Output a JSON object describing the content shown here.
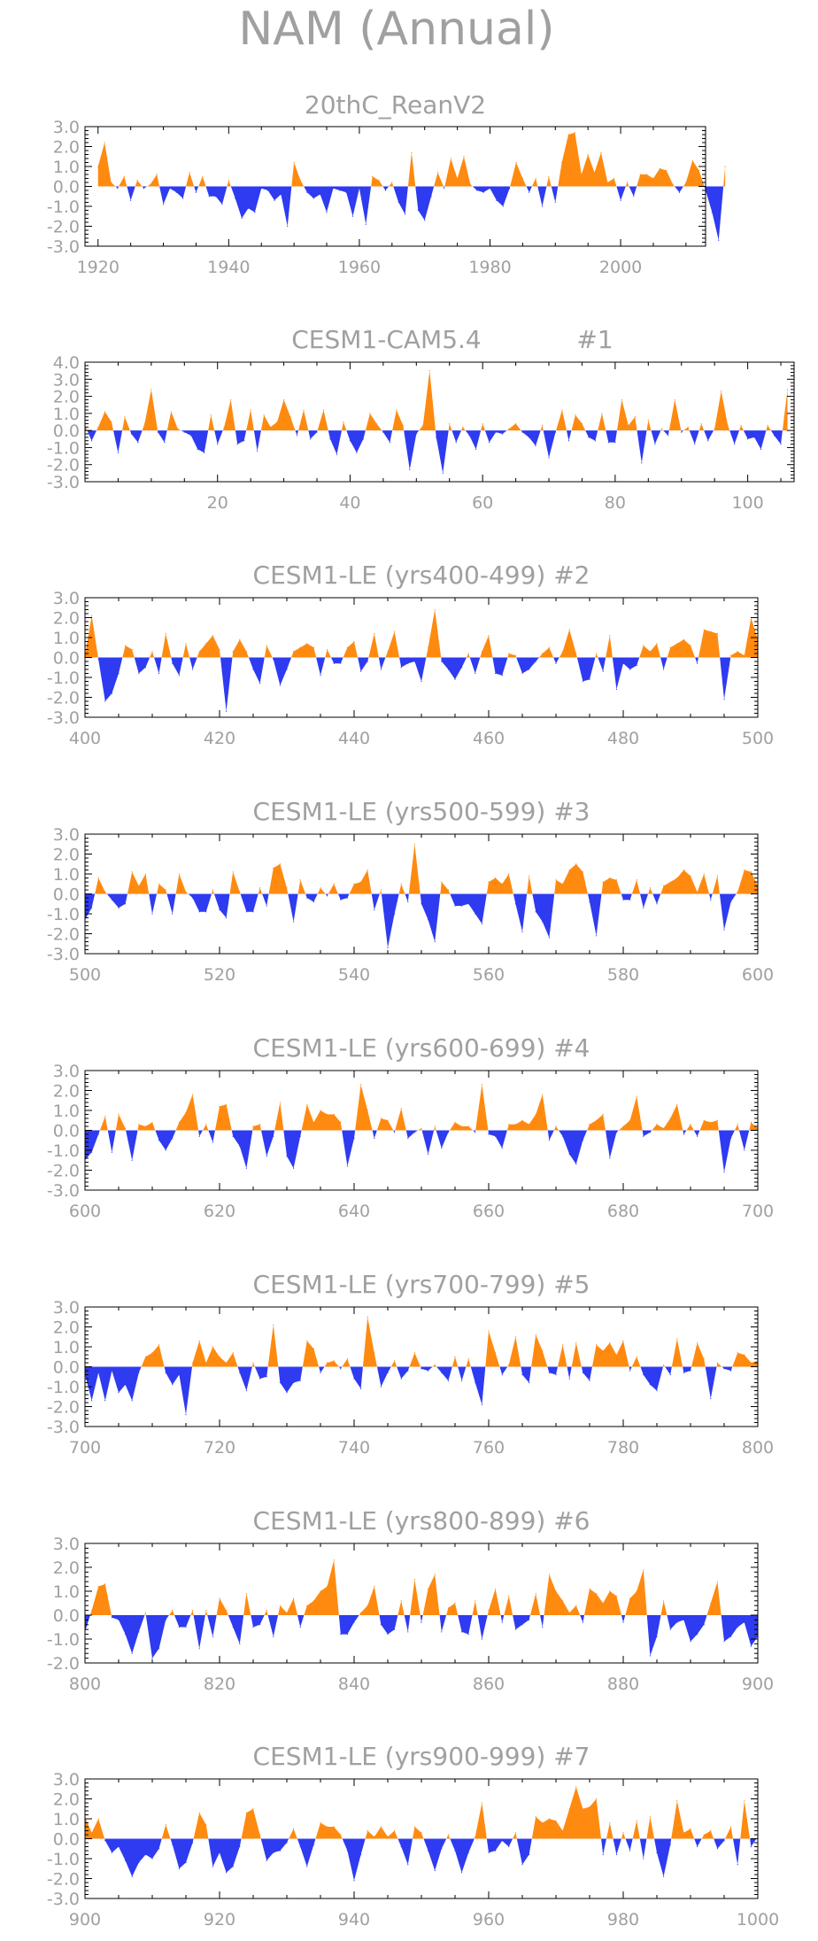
{
  "title": "NAM (Annual)",
  "colors": {
    "positive": "#ff8a10",
    "negative": "#2e3bf0",
    "text": "#a0a0a0",
    "axis": "#000000"
  },
  "chart_data": [
    {
      "type": "area",
      "title": "20thC_ReanV2",
      "xlim": [
        1918,
        2013
      ],
      "ylim": [
        -3,
        3
      ],
      "xticks": [
        1920,
        1940,
        1960,
        1980,
        2000
      ],
      "yticks": [
        -3,
        -2,
        -1,
        0,
        1,
        2,
        3
      ],
      "ytick_labels": [
        "-3.0",
        "-2.0",
        "-1.0",
        "0.0",
        "1.0",
        "2.0",
        "3.0"
      ],
      "x_start": 1920,
      "values": [
        1.0,
        2.2,
        0.2,
        -0.1,
        0.5,
        -0.7,
        0.3,
        -0.1,
        0.1,
        0.6,
        -0.9,
        -0.1,
        -0.3,
        -0.6,
        0.7,
        -0.3,
        0.5,
        -0.5,
        -0.5,
        -0.9,
        0.3,
        -0.6,
        -1.6,
        -1.1,
        -1.3,
        -0.1,
        -0.2,
        -0.7,
        -0.4,
        -2.0,
        1.2,
        0.3,
        -0.3,
        -0.6,
        -0.4,
        -1.3,
        -0.1,
        -0.2,
        -0.3,
        -1.5,
        -0.1,
        -1.9,
        0.5,
        0.3,
        -0.2,
        0.2,
        -0.8,
        -1.4,
        1.7,
        -1.2,
        -1.7,
        -0.5,
        0.7,
        -0.1,
        1.4,
        0.4,
        1.5,
        0.1,
        -0.2,
        -0.3,
        -0.1,
        -0.7,
        -1.0,
        -0.1,
        1.2,
        0.4,
        -0.3,
        0.4,
        -1.0,
        0.5,
        -0.8,
        1.2,
        2.6,
        2.7,
        0.6,
        1.6,
        0.7,
        1.7,
        0.2,
        0.4,
        -0.7,
        0.2,
        -0.5,
        0.6,
        0.6,
        0.4,
        0.9,
        0.8,
        0.1,
        -0.3,
        0.2,
        1.3,
        0.8,
        -0.2,
        -1.3,
        -2.7,
        1.0
      ]
    },
    {
      "type": "area",
      "title": "CESM1-CAM5.4",
      "run_label": "#1",
      "xlim": [
        0,
        107
      ],
      "ylim": [
        -3,
        4
      ],
      "xticks": [
        20,
        40,
        60,
        80,
        100
      ],
      "yticks": [
        -3,
        -2,
        -1,
        0,
        1,
        2,
        3,
        4
      ],
      "ytick_labels": [
        "-3.0",
        "-2.0",
        "-1.0",
        "0.0",
        "1.0",
        "2.0",
        "3.0",
        "4.0"
      ],
      "x_start": 0,
      "values": [
        0.3,
        -0.6,
        0.2,
        1.1,
        0.5,
        -1.3,
        0.8,
        -0.2,
        -0.7,
        0.4,
        2.4,
        -0.1,
        -0.7,
        1.1,
        0.1,
        -0.1,
        -0.3,
        -1.1,
        -1.3,
        0.9,
        -0.8,
        0.2,
        1.8,
        -0.8,
        -0.6,
        1.2,
        -1.2,
        0.9,
        0.2,
        0.5,
        1.8,
        0.8,
        -0.3,
        1.2,
        -0.5,
        -0.1,
        1.2,
        -0.5,
        -1.4,
        0.5,
        -0.6,
        -1.3,
        -0.5,
        1.0,
        0.4,
        -0.1,
        -0.7,
        1.2,
        0.3,
        -2.3,
        -0.2,
        0.3,
        3.5,
        -0.4,
        -2.5,
        0.4,
        -0.7,
        0.2,
        -0.3,
        -1.1,
        0.4,
        -0.7,
        -0.1,
        -0.2,
        0.1,
        0.4,
        -0.1,
        -0.4,
        -0.9,
        0.3,
        -1.6,
        -0.1,
        1.2,
        -0.6,
        0.9,
        0.4,
        -0.4,
        -0.6,
        1.0,
        -0.7,
        -0.7,
        1.8,
        0.3,
        0.8,
        -1.9,
        0.6,
        -0.8,
        0.1,
        -0.3,
        1.8,
        -0.1,
        0.2,
        -0.8,
        0.4,
        -0.6,
        0.1,
        2.3,
        0.3,
        -0.8,
        0.3,
        -0.5,
        -0.4,
        -1.1,
        0.3,
        -0.3,
        -0.8,
        2.4
      ]
    },
    {
      "type": "area",
      "title": "CESM1-LE (yrs400-499) #2",
      "xlim": [
        400,
        500
      ],
      "ylim": [
        -3,
        3
      ],
      "xticks": [
        400,
        420,
        440,
        460,
        480,
        500
      ],
      "yticks": [
        -3,
        -2,
        -1,
        0,
        1,
        2,
        3
      ],
      "ytick_labels": [
        "-3.0",
        "-2.0",
        "-1.0",
        "0.0",
        "1.0",
        "2.0",
        "3.0"
      ],
      "x_start": 400,
      "values": [
        0.1,
        2.1,
        -0.1,
        -2.2,
        -1.8,
        -0.8,
        0.6,
        0.4,
        -0.8,
        -0.5,
        0.3,
        -0.8,
        1.2,
        -0.3,
        -0.9,
        0.7,
        -0.6,
        0.3,
        0.7,
        1.1,
        0.4,
        -2.7,
        0.3,
        0.9,
        0.3,
        -0.6,
        -1.3,
        0.6,
        -0.1,
        -1.4,
        -0.6,
        0.3,
        0.5,
        0.7,
        0.5,
        -0.9,
        0.4,
        -0.3,
        -0.3,
        0.5,
        0.8,
        -0.7,
        -0.2,
        1.2,
        -0.6,
        0.3,
        1.3,
        -0.5,
        -0.3,
        -0.2,
        -1.2,
        0.5,
        2.4,
        -0.2,
        -0.6,
        -1.1,
        -0.5,
        0.2,
        -0.8,
        0.3,
        1.1,
        -0.8,
        -0.9,
        0.2,
        0.1,
        -0.8,
        -0.6,
        -0.2,
        0.2,
        0.5,
        -0.3,
        0.3,
        1.4,
        0.2,
        -1.2,
        -1.1,
        0.2,
        -0.7,
        1.1,
        -1.6,
        -0.3,
        -0.6,
        -0.4,
        0.6,
        0.3,
        0.7,
        -0.6,
        0.5,
        0.7,
        0.9,
        0.6,
        -0.3,
        1.4,
        1.3,
        1.2,
        -2.1,
        0.1,
        0.3,
        0.1,
        2.0,
        0.9
      ]
    },
    {
      "type": "area",
      "title": "CESM1-LE (yrs500-599) #3",
      "xlim": [
        500,
        600
      ],
      "ylim": [
        -3,
        3
      ],
      "xticks": [
        500,
        520,
        540,
        560,
        580,
        600
      ],
      "yticks": [
        -3,
        -2,
        -1,
        0,
        1,
        2,
        3
      ],
      "ytick_labels": [
        "-3.0",
        "-2.0",
        "-1.0",
        "0.0",
        "1.0",
        "2.0",
        "3.0"
      ],
      "x_start": 500,
      "values": [
        -1.3,
        -0.7,
        0.8,
        0.1,
        -0.3,
        -0.7,
        -0.5,
        1.1,
        0.4,
        1.0,
        -1.0,
        0.5,
        0.2,
        -1.0,
        1.0,
        0.1,
        -0.2,
        -0.9,
        -0.9,
        0.2,
        -0.8,
        -1.2,
        1.1,
        0.1,
        -0.9,
        -0.9,
        0.3,
        -0.6,
        1.3,
        1.5,
        0.3,
        -1.4,
        0.7,
        -0.2,
        -0.4,
        0.3,
        -0.1,
        0.5,
        -0.3,
        -0.2,
        0.5,
        0.6,
        1.2,
        -0.8,
        0.2,
        -2.7,
        -1.0,
        0.5,
        -0.4,
        2.5,
        -0.5,
        -1.3,
        -2.4,
        0.6,
        0.2,
        -0.6,
        -0.6,
        -0.5,
        -1.0,
        -1.5,
        0.6,
        0.8,
        0.5,
        1.0,
        -0.5,
        -1.9,
        0.9,
        -0.9,
        -1.4,
        -2.2,
        0.7,
        0.5,
        1.2,
        1.5,
        1.1,
        -0.4,
        -2.1,
        0.6,
        0.8,
        0.7,
        -0.3,
        -0.3,
        0.7,
        -0.7,
        0.3,
        -0.5,
        0.4,
        0.6,
        0.8,
        1.2,
        0.9,
        0.1,
        1.0,
        -0.3,
        0.9,
        -1.8,
        -0.4,
        0.1,
        1.2,
        1.1,
        0.4
      ]
    },
    {
      "type": "area",
      "title": "CESM1-LE (yrs600-699) #4",
      "xlim": [
        600,
        700
      ],
      "ylim": [
        -3,
        3
      ],
      "xticks": [
        600,
        620,
        640,
        660,
        680,
        700
      ],
      "yticks": [
        -3,
        -2,
        -1,
        0,
        1,
        2,
        3
      ],
      "ytick_labels": [
        "-3.0",
        "-2.0",
        "-1.0",
        "0.0",
        "1.0",
        "2.0",
        "3.0"
      ],
      "x_start": 600,
      "values": [
        -1.5,
        -1.1,
        -0.2,
        0.7,
        -1.1,
        0.8,
        0.1,
        -1.5,
        0.3,
        0.2,
        0.4,
        -0.5,
        -1.0,
        -0.4,
        0.4,
        0.9,
        1.8,
        -0.3,
        0.3,
        -0.6,
        1.2,
        1.3,
        -0.3,
        -0.8,
        -1.9,
        0.2,
        0.3,
        -1.3,
        -0.3,
        1.4,
        -1.3,
        -1.9,
        -0.3,
        1.3,
        0.4,
        1.0,
        0.8,
        0.8,
        0.4,
        -1.8,
        -0.4,
        2.3,
        1.0,
        -0.4,
        0.6,
        0.5,
        -0.1,
        1.1,
        -0.4,
        -0.1,
        0.1,
        -1.2,
        0.2,
        -0.9,
        -0.1,
        0.4,
        0.2,
        0.2,
        -0.1,
        2.3,
        -0.2,
        -0.3,
        -0.9,
        0.3,
        0.3,
        0.5,
        0.3,
        0.8,
        1.8,
        -0.5,
        0.2,
        -0.3,
        -1.2,
        -1.7,
        -0.5,
        0.3,
        0.5,
        0.8,
        -1.4,
        -0.1,
        0.2,
        0.5,
        1.7,
        -0.3,
        -0.1,
        0.3,
        0.1,
        0.6,
        1.3,
        -0.2,
        0.3,
        -0.3,
        0.5,
        0.4,
        0.5,
        -2.1,
        -0.4,
        0.3,
        -1.0,
        0.4,
        0.1
      ]
    },
    {
      "type": "area",
      "title": "CESM1-LE (yrs700-799) #5",
      "xlim": [
        700,
        800
      ],
      "ylim": [
        -3,
        3
      ],
      "xticks": [
        700,
        720,
        740,
        760,
        780,
        800
      ],
      "yticks": [
        -3,
        -2,
        -1,
        0,
        1,
        2,
        3
      ],
      "ytick_labels": [
        "-3.0",
        "-2.0",
        "-1.0",
        "0.0",
        "1.0",
        "2.0",
        "3.0"
      ],
      "x_start": 700,
      "values": [
        -0.4,
        -1.7,
        -0.3,
        -1.7,
        -0.2,
        -1.3,
        -0.9,
        -1.7,
        -0.3,
        0.5,
        0.7,
        1.1,
        -0.3,
        -0.9,
        -0.4,
        -2.4,
        0.2,
        1.3,
        0.2,
        1.0,
        0.5,
        0.2,
        0.7,
        -0.3,
        -1.2,
        0.2,
        -0.6,
        -0.5,
        2.1,
        -0.8,
        -1.3,
        -0.8,
        -0.7,
        1.3,
        0.9,
        -0.3,
        0.2,
        0.3,
        -0.1,
        0.4,
        -0.6,
        -1.1,
        2.5,
        0.7,
        -1.0,
        -0.3,
        0.3,
        -0.6,
        -0.2,
        0.7,
        -0.1,
        -0.2,
        0.1,
        -0.3,
        -0.7,
        0.5,
        -0.7,
        0.4,
        -0.8,
        -1.9,
        1.8,
        0.7,
        -0.4,
        0.1,
        1.5,
        -0.4,
        -0.8,
        1.6,
        0.8,
        -0.3,
        -0.4,
        1.1,
        -0.6,
        1.2,
        -0.3,
        -0.7,
        1.1,
        0.8,
        1.2,
        0.6,
        1.3,
        -0.2,
        0.5,
        -0.4,
        -0.9,
        -1.2,
        0.1,
        -0.4,
        1.4,
        -0.3,
        -0.2,
        1.2,
        0.4,
        -1.6,
        0.2,
        -0.1,
        -0.2,
        0.7,
        0.6,
        0.2,
        0.3
      ]
    },
    {
      "type": "area",
      "title": "CESM1-LE (yrs800-899) #6",
      "xlim": [
        800,
        900
      ],
      "ylim": [
        -2,
        3
      ],
      "xticks": [
        800,
        820,
        840,
        860,
        880,
        900
      ],
      "yticks": [
        -2,
        -1,
        0,
        1,
        2,
        3
      ],
      "ytick_labels": [
        "-2.0",
        "-1.0",
        "0.0",
        "1.0",
        "2.0",
        "3.0"
      ],
      "x_start": 800,
      "values": [
        -0.7,
        0.2,
        1.2,
        1.3,
        -0.1,
        -0.2,
        -0.8,
        -1.6,
        -0.7,
        0.1,
        -1.8,
        -1.4,
        -0.2,
        0.2,
        -0.5,
        -0.5,
        0.2,
        -1.4,
        0.2,
        -0.9,
        0.7,
        0.2,
        -0.5,
        -1.2,
        0.9,
        -0.5,
        -0.4,
        0.2,
        -0.9,
        0.4,
        0.1,
        0.7,
        -0.5,
        0.4,
        0.6,
        1.0,
        1.2,
        2.3,
        -0.8,
        -0.8,
        -0.3,
        0.1,
        0.4,
        1.2,
        -0.4,
        -0.8,
        -0.6,
        0.6,
        -0.7,
        1.5,
        -0.3,
        1.1,
        1.7,
        -0.7,
        0.3,
        0.5,
        -0.7,
        -0.8,
        0.6,
        -1.0,
        0.2,
        1.1,
        -0.3,
        0.8,
        -0.6,
        -0.4,
        -0.2,
        0.9,
        -0.5,
        1.7,
        1.0,
        0.6,
        0.1,
        0.4,
        -0.3,
        1.1,
        0.9,
        0.5,
        1.0,
        0.8,
        -0.3,
        0.7,
        1.0,
        1.9,
        -1.7,
        -0.9,
        0.6,
        -0.6,
        -0.3,
        -0.2,
        -1.1,
        -0.8,
        -0.4,
        0.5,
        1.4,
        -1.1,
        -0.9,
        -0.5,
        -0.3,
        -1.3,
        -0.9
      ]
    },
    {
      "type": "area",
      "title": "CESM1-LE (yrs900-999) #7",
      "xlim": [
        900,
        1000
      ],
      "ylim": [
        -3,
        3
      ],
      "xticks": [
        900,
        920,
        940,
        960,
        980,
        1000
      ],
      "yticks": [
        -3,
        -2,
        -1,
        0,
        1,
        2,
        3
      ],
      "ytick_labels": [
        "-3.0",
        "-2.0",
        "-1.0",
        "0.0",
        "1.0",
        "2.0",
        "3.0"
      ],
      "x_start": 900,
      "values": [
        1.1,
        0.3,
        1.0,
        -0.1,
        -0.7,
        -0.4,
        -1.1,
        -1.9,
        -1.2,
        -0.8,
        -1.0,
        -0.5,
        0.7,
        -0.3,
        -1.5,
        -1.2,
        -0.2,
        1.3,
        0.7,
        -1.4,
        -0.7,
        -1.7,
        -1.4,
        -0.4,
        1.3,
        1.5,
        0.2,
        -1.1,
        -0.7,
        -0.6,
        -0.2,
        0.5,
        -0.4,
        -1.4,
        -0.3,
        0.8,
        0.6,
        0.6,
        0.2,
        -0.6,
        -2.1,
        -0.8,
        0.4,
        0.1,
        0.6,
        0.1,
        0.4,
        -0.4,
        -1.3,
        0.6,
        0.3,
        -0.6,
        -1.6,
        -0.5,
        0.2,
        -0.6,
        -1.7,
        -0.7,
        0.1,
        1.8,
        -0.7,
        -0.6,
        -0.1,
        -0.4,
        0.3,
        -1.3,
        -0.8,
        1.1,
        0.8,
        1.0,
        0.9,
        0.4,
        1.5,
        2.6,
        1.5,
        1.6,
        2.0,
        -0.8,
        0.8,
        -0.8,
        0.3,
        -0.6,
        0.9,
        -1.0,
        1.1,
        -0.7,
        -1.9,
        -0.3,
        1.9,
        0.3,
        0.5,
        -0.4,
        0.2,
        0.4,
        -0.5,
        -0.1,
        0.6,
        -1.3,
        1.9,
        -0.4,
        0.1
      ]
    }
  ]
}
